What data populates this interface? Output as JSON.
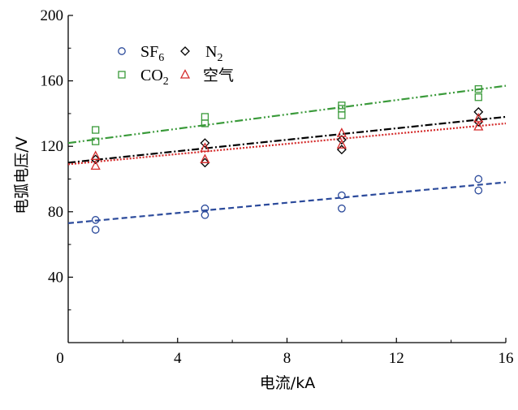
{
  "chart_data": {
    "type": "scatter",
    "xlabel": "电流/kA",
    "ylabel": "电弧电压/V",
    "xlim": [
      0,
      16
    ],
    "ylim": [
      0,
      200
    ],
    "xticks": [
      "0",
      "4",
      "8",
      "12",
      "16"
    ],
    "yticks": [
      "40",
      "80",
      "120",
      "160",
      "200"
    ],
    "grid": false,
    "legend_position": "top-left",
    "series": [
      {
        "name": "SF6",
        "label_main": "SF",
        "label_sub": "6",
        "marker": "circle",
        "color": "#2b4a9b",
        "points": [
          [
            1.0,
            75
          ],
          [
            1.0,
            69
          ],
          [
            5.0,
            82
          ],
          [
            5.0,
            78
          ],
          [
            10.0,
            90
          ],
          [
            10.0,
            82
          ],
          [
            15.0,
            100
          ],
          [
            15.0,
            93
          ]
        ],
        "fit": {
          "x0": 0,
          "y0": 73,
          "x1": 16,
          "y1": 98,
          "style": "dashed"
        }
      },
      {
        "name": "N2",
        "label_main": "N",
        "label_sub": "2",
        "marker": "diamond",
        "color": "#000000",
        "points": [
          [
            1.0,
            112
          ],
          [
            5.0,
            122
          ],
          [
            5.0,
            110
          ],
          [
            10.0,
            124
          ],
          [
            10.0,
            118
          ],
          [
            15.0,
            141
          ],
          [
            15.0,
            135
          ]
        ],
        "fit": {
          "x0": 0,
          "y0": 110,
          "x1": 16,
          "y1": 138,
          "style": "dashdot"
        }
      },
      {
        "name": "CO2",
        "label_main": "CO",
        "label_sub": "2",
        "marker": "square",
        "color": "#3a9a3a",
        "points": [
          [
            1.0,
            130
          ],
          [
            1.0,
            123
          ],
          [
            5.0,
            138
          ],
          [
            5.0,
            134
          ],
          [
            10.0,
            145
          ],
          [
            10.0,
            143
          ],
          [
            10.0,
            139
          ],
          [
            15.0,
            155
          ],
          [
            15.0,
            150
          ]
        ],
        "fit": {
          "x0": 0,
          "y0": 122,
          "x1": 16,
          "y1": 157,
          "style": "dashdotdot"
        }
      },
      {
        "name": "空气",
        "label_main": "空气",
        "label_sub": "",
        "marker": "triangle",
        "color": "#d42a2a",
        "points": [
          [
            1.0,
            114
          ],
          [
            1.0,
            108
          ],
          [
            5.0,
            119
          ],
          [
            5.0,
            112
          ],
          [
            10.0,
            128
          ],
          [
            10.0,
            121
          ],
          [
            15.0,
            137
          ],
          [
            15.0,
            132
          ]
        ],
        "fit": {
          "x0": 0,
          "y0": 109,
          "x1": 16,
          "y1": 134,
          "style": "dotted"
        }
      }
    ]
  }
}
